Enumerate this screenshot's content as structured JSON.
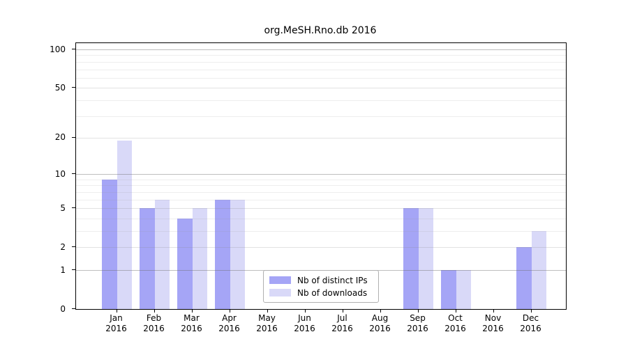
{
  "title": "org.MeSH.Rno.db 2016",
  "chart_data": {
    "type": "bar",
    "title": "org.MeSH.Rno.db 2016",
    "categories": [
      "Jan 2016",
      "Feb 2016",
      "Mar 2016",
      "Apr 2016",
      "May 2016",
      "Jun 2016",
      "Jul 2016",
      "Aug 2016",
      "Sep 2016",
      "Oct 2016",
      "Nov 2016",
      "Dec 2016"
    ],
    "series": [
      {
        "name": "Nb of distinct IPs",
        "color": "#a5a5f6",
        "values": [
          9,
          5,
          4,
          6,
          0,
          0,
          0,
          0,
          5,
          1,
          0,
          2
        ]
      },
      {
        "name": "Nb of downloads",
        "color": "#d9d9f8",
        "values": [
          19,
          6,
          5,
          6,
          0,
          0,
          0,
          0,
          5,
          1,
          0,
          3
        ]
      }
    ],
    "yscale": "log1p",
    "ylabel": "",
    "xlabel": "",
    "y_ticks": [
      0,
      1,
      2,
      5,
      10,
      20,
      50,
      100
    ],
    "y_minor_ticks": [
      3,
      4,
      6,
      7,
      8,
      9,
      30,
      40,
      60,
      70,
      80,
      90
    ],
    "ylim": [
      0,
      112
    ],
    "grid": true,
    "legend_position": "bottom-center-left",
    "spine_color": "#000000"
  }
}
